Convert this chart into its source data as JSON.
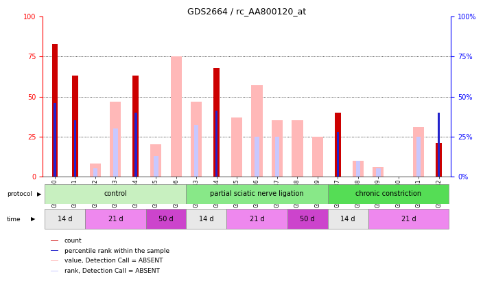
{
  "title": "GDS2664 / rc_AA800120_at",
  "samples": [
    "GSM50750",
    "GSM50751",
    "GSM50752",
    "GSM50753",
    "GSM50754",
    "GSM50755",
    "GSM50756",
    "GSM50743",
    "GSM50744",
    "GSM50745",
    "GSM50746",
    "GSM50747",
    "GSM50748",
    "GSM50749",
    "GSM50737",
    "GSM50738",
    "GSM50739",
    "GSM50740",
    "GSM50741",
    "GSM50742"
  ],
  "count_values": [
    83,
    63,
    0,
    0,
    63,
    0,
    0,
    0,
    68,
    0,
    0,
    0,
    0,
    0,
    40,
    0,
    0,
    0,
    0,
    21
  ],
  "rank_values": [
    46,
    35,
    0,
    0,
    40,
    0,
    0,
    0,
    41,
    0,
    0,
    0,
    0,
    0,
    28,
    0,
    0,
    0,
    0,
    40
  ],
  "absent_value_values": [
    0,
    0,
    8,
    47,
    0,
    20,
    75,
    47,
    0,
    37,
    57,
    35,
    35,
    25,
    0,
    10,
    6,
    0,
    31,
    0
  ],
  "absent_rank_values": [
    0,
    0,
    5,
    30,
    0,
    13,
    0,
    32,
    0,
    0,
    25,
    25,
    0,
    0,
    0,
    10,
    5,
    0,
    25,
    13
  ],
  "protocol_groups": [
    {
      "label": "control",
      "start": 0,
      "end": 7,
      "color": "#c8f0c0"
    },
    {
      "label": "partial sciatic nerve ligation",
      "start": 7,
      "end": 14,
      "color": "#88e888"
    },
    {
      "label": "chronic constriction",
      "start": 14,
      "end": 20,
      "color": "#55dd55"
    }
  ],
  "time_groups": [
    {
      "label": "14 d",
      "start": 0,
      "end": 2,
      "color": "#e8e8e8"
    },
    {
      "label": "21 d",
      "start": 2,
      "end": 5,
      "color": "#ee88ee"
    },
    {
      "label": "50 d",
      "start": 5,
      "end": 7,
      "color": "#cc44cc"
    },
    {
      "label": "14 d",
      "start": 7,
      "end": 9,
      "color": "#e8e8e8"
    },
    {
      "label": "21 d",
      "start": 9,
      "end": 12,
      "color": "#ee88ee"
    },
    {
      "label": "50 d",
      "start": 12,
      "end": 14,
      "color": "#cc44cc"
    },
    {
      "label": "14 d",
      "start": 14,
      "end": 16,
      "color": "#e8e8e8"
    },
    {
      "label": "21 d",
      "start": 16,
      "end": 20,
      "color": "#ee88ee"
    }
  ],
  "ylim": [
    0,
    100
  ],
  "count_color": "#cc0000",
  "rank_color": "#2222cc",
  "absent_value_color": "#ffb8b8",
  "absent_rank_color": "#c8c8ff",
  "bg_color": "#ffffff"
}
